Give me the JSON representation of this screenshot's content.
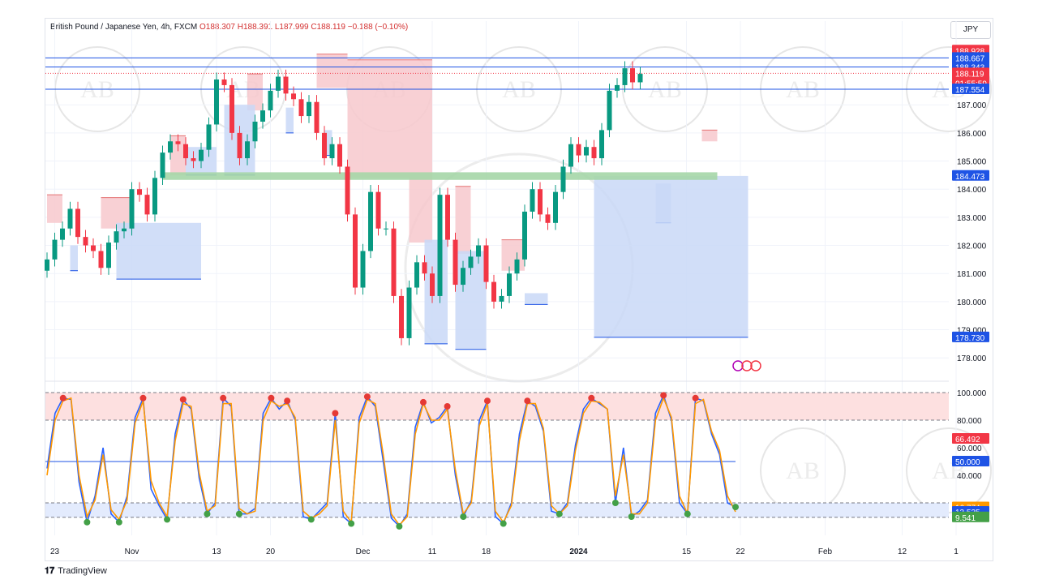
{
  "header": {
    "symbol": "British Pound / Japanese Yen, 4h, FXCM",
    "ohlc": "O188.307 H188.391 L187.999 C188.119 −0.188 (−0.10%)",
    "currency": "JPY"
  },
  "branding": {
    "logo_icon": "tradingview-logo-icon",
    "name": "TradingView"
  },
  "watermark_text": "AB",
  "colors": {
    "up": "#089981",
    "down": "#f23645",
    "level_blue": "#1e53e5",
    "supply_zone": "#f7c8cc",
    "demand_zone": "#c9d8f7",
    "key_level": "#a5d6a7",
    "stoch_k": "#2962ff",
    "stoch_d": "#ff9800",
    "overbought_band": "#fde0e0",
    "oversold_band": "#e3ebfd"
  },
  "chart_data": [
    {
      "type": "candlestick",
      "title": "British Pound / Japanese Yen, 4h, FXCM",
      "ylim": [
        177.4,
        189.4
      ],
      "price_ticks": [
        "178.000",
        "179.000",
        "180.000",
        "181.000",
        "182.000",
        "183.000",
        "184.000",
        "185.000",
        "186.000",
        "187.000"
      ],
      "time_ticks": [
        {
          "label": "23",
          "i": 1
        },
        {
          "label": "Nov",
          "i": 11
        },
        {
          "label": "13",
          "i": 22
        },
        {
          "label": "20",
          "i": 29
        },
        {
          "label": "Dec",
          "i": 41
        },
        {
          "label": "11",
          "i": 50
        },
        {
          "label": "18",
          "i": 57
        },
        {
          "label": "2024",
          "i": 69
        },
        {
          "label": "15",
          "i": 83
        },
        {
          "label": "22",
          "i": 90
        },
        {
          "label": "Feb",
          "i": 101
        },
        {
          "label": "12",
          "i": 111
        },
        {
          "label": "1",
          "i": 118
        }
      ],
      "closes": [
        181.5,
        182.2,
        182.6,
        183.3,
        182.3,
        182.0,
        181.8,
        181.2,
        182.1,
        182.5,
        182.6,
        184.0,
        183.8,
        183.1,
        184.4,
        185.3,
        185.7,
        185.6,
        185.1,
        185.0,
        185.4,
        186.3,
        187.9,
        187.7,
        186.0,
        185.1,
        185.7,
        186.4,
        186.8,
        187.5,
        188.0,
        187.4,
        187.2,
        186.6,
        187.1,
        186.0,
        185.1,
        185.6,
        184.8,
        183.1,
        180.5,
        181.8,
        183.9,
        182.6,
        182.6,
        180.2,
        178.7,
        180.5,
        181.4,
        181.0,
        180.2,
        183.8,
        182.2,
        180.6,
        181.2,
        181.6,
        182.0,
        180.7,
        180.0,
        180.2,
        181.0,
        181.5,
        183.2,
        184.0,
        183.1,
        182.8,
        183.9,
        184.8,
        185.6,
        185.2,
        185.5,
        185.1,
        186.1,
        187.5,
        187.7,
        188.3,
        187.8,
        188.1
      ],
      "close_x_index_start": 0,
      "current_price": "188.119",
      "countdown": "01:55:59",
      "price_labels": {
        "upper": "188.928",
        "level_1": "188.667",
        "level_2": "188.343",
        "level_3": "187.554",
        "key_level": "184.473",
        "support": "178.730"
      },
      "levels": [
        188.667,
        188.343,
        187.554
      ],
      "key_zone": {
        "low": 184.33,
        "high": 184.6
      },
      "zones": [
        {
          "kind": "supply",
          "x0": 0,
          "x1": 2,
          "low": 182.8,
          "high": 183.8
        },
        {
          "kind": "supply",
          "x0": 7,
          "x1": 11,
          "low": 182.6,
          "high": 183.7
        },
        {
          "kind": "supply",
          "x0": 16,
          "x1": 18,
          "low": 184.5,
          "high": 185.9
        },
        {
          "kind": "supply",
          "x0": 26,
          "x1": 28,
          "low": 186.8,
          "high": 188.1
        },
        {
          "kind": "supply",
          "x0": 35,
          "x1": 39,
          "low": 187.6,
          "high": 188.8
        },
        {
          "kind": "supply",
          "x0": 39,
          "x1": 47,
          "low": 184.4,
          "high": 188.6
        },
        {
          "kind": "supply",
          "x0": 47,
          "x1": 50,
          "low": 182.1,
          "high": 188.6
        },
        {
          "kind": "supply",
          "x0": 53,
          "x1": 55,
          "low": 181.7,
          "high": 184.1
        },
        {
          "kind": "supply",
          "x0": 59,
          "x1": 62,
          "low": 181.1,
          "high": 182.2
        },
        {
          "kind": "supply",
          "x0": 85,
          "x1": 87,
          "low": 185.7,
          "high": 186.1
        },
        {
          "kind": "demand",
          "x0": 3,
          "x1": 4,
          "low": 181.1,
          "high": 182.0
        },
        {
          "kind": "demand",
          "x0": 9,
          "x1": 20,
          "low": 180.8,
          "high": 182.8
        },
        {
          "kind": "demand",
          "x0": 18,
          "x1": 22,
          "low": 184.5,
          "high": 185.5
        },
        {
          "kind": "demand",
          "x0": 23,
          "x1": 27,
          "low": 184.5,
          "high": 187.0
        },
        {
          "kind": "demand",
          "x0": 31,
          "x1": 32,
          "low": 186.0,
          "high": 186.9
        },
        {
          "kind": "demand",
          "x0": 36,
          "x1": 37,
          "low": 185.2,
          "high": 186.1
        },
        {
          "kind": "demand",
          "x0": 49,
          "x1": 52,
          "low": 178.5,
          "high": 182.2
        },
        {
          "kind": "demand",
          "x0": 53,
          "x1": 57,
          "low": 178.3,
          "high": 181.8
        },
        {
          "kind": "demand",
          "x0": 62,
          "x1": 65,
          "low": 179.9,
          "high": 180.3
        },
        {
          "kind": "demand",
          "x0": 79,
          "x1": 81,
          "low": 182.8,
          "high": 184.2
        },
        {
          "kind": "demand",
          "x0": 71,
          "x1": 91,
          "low": 178.73,
          "high": 184.47
        }
      ]
    },
    {
      "type": "line",
      "title": "",
      "ylim": [
        0,
        100
      ],
      "axis_ticks": [
        "100.000",
        "80.000",
        "60.000",
        "40.000"
      ],
      "labels": {
        "k": "66.492",
        "midline": "50.000",
        "d_1": "16.774",
        "d_2": "13.535",
        "oversold": "9.541"
      },
      "overbought": 80,
      "oversold": 20,
      "midline": 50,
      "series": [
        {
          "key": "k",
          "values": [
            45,
            85,
            96,
            95,
            35,
            6,
            25,
            60,
            12,
            6,
            25,
            82,
            96,
            30,
            18,
            8,
            70,
            95,
            88,
            38,
            12,
            20,
            96,
            90,
            12,
            12,
            16,
            85,
            96,
            88,
            94,
            80,
            10,
            8,
            14,
            20,
            85,
            10,
            5,
            82,
            97,
            90,
            50,
            9,
            3,
            12,
            75,
            93,
            78,
            82,
            90,
            40,
            10,
            22,
            80,
            94,
            10,
            5,
            20,
            70,
            94,
            90,
            72,
            14,
            12,
            20,
            62,
            88,
            96,
            92,
            88,
            20,
            60,
            10,
            14,
            22,
            85,
            98,
            80,
            20,
            12,
            96,
            94,
            70,
            55,
            20,
            17
          ]
        },
        {
          "key": "d",
          "values": [
            40,
            80,
            94,
            96,
            40,
            10,
            22,
            55,
            15,
            8,
            22,
            78,
            94,
            36,
            20,
            10,
            65,
            92,
            90,
            42,
            14,
            18,
            92,
            92,
            16,
            12,
            14,
            80,
            94,
            90,
            92,
            82,
            14,
            9,
            12,
            18,
            80,
            14,
            6,
            78,
            95,
            92,
            55,
            12,
            4,
            10,
            70,
            92,
            80,
            80,
            88,
            44,
            12,
            20,
            76,
            92,
            14,
            6,
            18,
            65,
            92,
            92,
            74,
            18,
            12,
            18,
            58,
            85,
            94,
            93,
            88,
            25,
            55,
            12,
            12,
            20,
            80,
            96,
            82,
            25,
            12,
            92,
            95,
            72,
            58,
            25,
            13.5
          ]
        }
      ]
    }
  ]
}
